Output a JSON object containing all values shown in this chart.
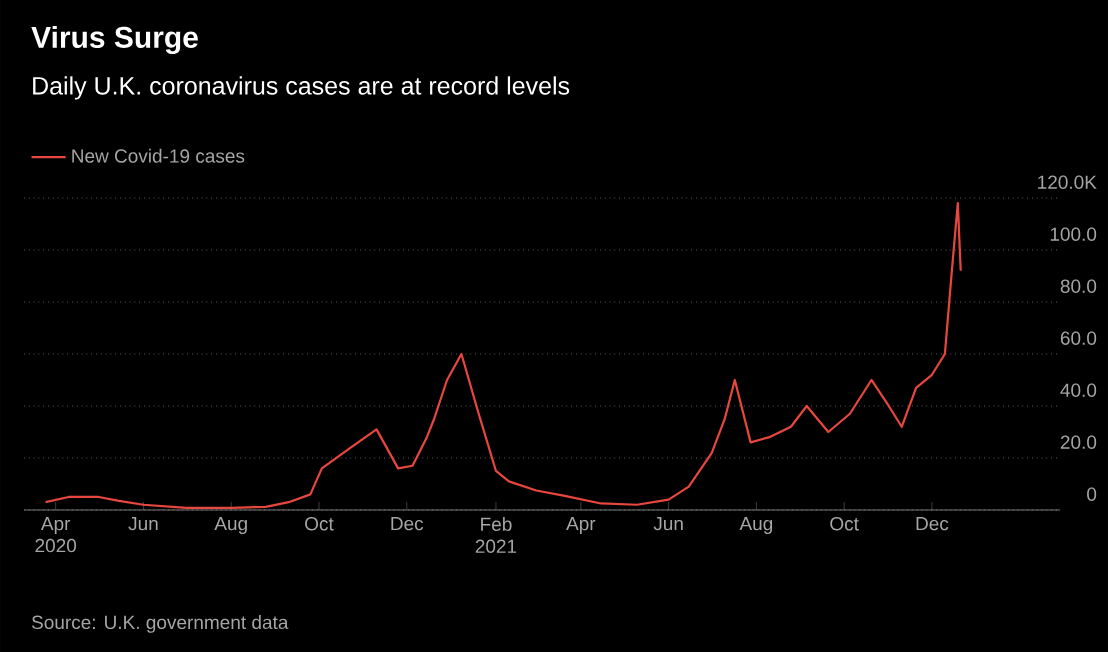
{
  "chart_data": {
    "type": "line",
    "title": "Virus Surge",
    "subtitle": "Daily U.K. coronavirus cases are at record levels",
    "annotations": [
      "Source: U.K. government data"
    ],
    "x": [
      "2020-03-25",
      "2020-04-10",
      "2020-05-01",
      "2020-05-15",
      "2020-06-01",
      "2020-07-01",
      "2020-08-01",
      "2020-08-25",
      "2020-09-10",
      "2020-09-25",
      "2020-10-03",
      "2020-10-23",
      "2020-11-10",
      "2020-11-25",
      "2020-12-05",
      "2020-12-15",
      "2020-12-20",
      "2020-12-29",
      "2021-01-08",
      "2021-01-20",
      "2021-02-01",
      "2021-02-10",
      "2021-03-01",
      "2021-03-20",
      "2021-04-15",
      "2021-05-10",
      "2021-06-01",
      "2021-06-15",
      "2021-07-01",
      "2021-07-10",
      "2021-07-17",
      "2021-07-28",
      "2021-08-10",
      "2021-08-25",
      "2021-09-05",
      "2021-09-20",
      "2021-10-05",
      "2021-10-20",
      "2021-11-01",
      "2021-11-10",
      "2021-11-20",
      "2021-12-01",
      "2021-12-10",
      "2021-12-15",
      "2021-12-19",
      "2021-12-21"
    ],
    "series": [
      {
        "name": "New Covid-19 cases",
        "color": "#e8473f",
        "values": [
          3,
          5,
          5,
          3.5,
          2,
          0.8,
          0.8,
          1.2,
          3,
          6,
          16,
          24,
          31,
          16,
          17,
          28,
          35,
          50,
          60,
          37,
          15,
          11,
          7.5,
          5.5,
          2.5,
          2,
          4,
          9,
          22,
          35,
          50,
          26,
          28,
          32,
          40,
          30,
          37,
          50,
          40,
          32,
          47,
          52,
          60,
          93,
          118,
          92
        ]
      }
    ],
    "xlim": [
      "2020-03-10",
      "2022-02-28"
    ],
    "xticks": [
      {
        "value": "2020-04-01",
        "label": "Apr 2020"
      },
      {
        "value": "2020-06-01",
        "label": "Jun"
      },
      {
        "value": "2020-08-01",
        "label": "Aug"
      },
      {
        "value": "2020-10-01",
        "label": "Oct"
      },
      {
        "value": "2020-12-01",
        "label": "Dec"
      },
      {
        "value": "2021-02-01",
        "label": "Feb 2021"
      },
      {
        "value": "2021-04-01",
        "label": "Apr"
      },
      {
        "value": "2021-06-01",
        "label": "Jun"
      },
      {
        "value": "2021-08-01",
        "label": "Aug"
      },
      {
        "value": "2021-10-01",
        "label": "Oct"
      },
      {
        "value": "2021-12-01",
        "label": "Dec"
      }
    ],
    "ylim": [
      0,
      120
    ],
    "yticks": [
      {
        "value": 0,
        "label": "0"
      },
      {
        "value": 20,
        "label": "20.0"
      },
      {
        "value": 40,
        "label": "40.0"
      },
      {
        "value": 60,
        "label": "60.0"
      },
      {
        "value": 80,
        "label": "80.0"
      },
      {
        "value": 100,
        "label": "100.0"
      },
      {
        "value": 120,
        "label": "120.0K"
      }
    ],
    "grid": "y",
    "legend": "top left",
    "marker": "none",
    "line_style": "solid"
  }
}
